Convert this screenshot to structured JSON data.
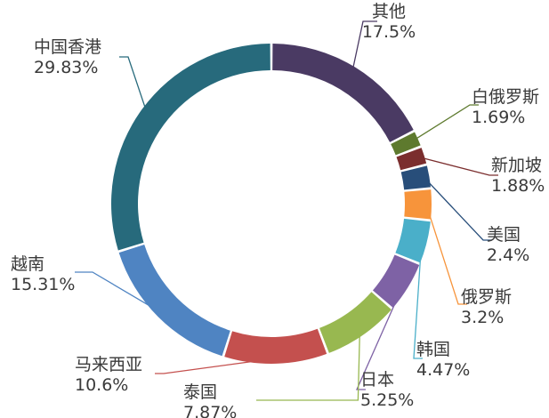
{
  "chart_data": {
    "type": "pie",
    "style": "donut",
    "categories": [
      "其他",
      "白俄罗斯",
      "新加坡",
      "美国",
      "俄罗斯",
      "韩国",
      "日本",
      "泰国",
      "马来西亚",
      "越南",
      "中国香港"
    ],
    "values": [
      17.5,
      1.69,
      1.88,
      2.4,
      3.2,
      4.47,
      5.25,
      7.87,
      10.6,
      15.31,
      29.83
    ],
    "value_labels": [
      "17.5%",
      "1.69%",
      "1.88%",
      "2.4%",
      "3.2%",
      "4.47%",
      "5.25%",
      "7.87%",
      "10.6%",
      "15.31%",
      "29.83%"
    ],
    "colors": [
      "#4a3a63",
      "#5e7a2e",
      "#7b2e2e",
      "#284e7a",
      "#f7943b",
      "#4aafc9",
      "#7e62a5",
      "#98b850",
      "#c4504e",
      "#4f84c2",
      "#276a7c"
    ],
    "legend": "none",
    "grid": false
  }
}
